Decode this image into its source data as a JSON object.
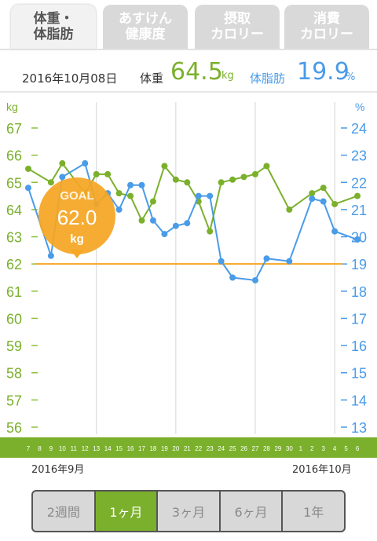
{
  "tabs": [
    {
      "line1": "体重・",
      "line2": "体脂肪"
    },
    {
      "line1": "あすけん",
      "line2": "健康度"
    },
    {
      "line1": "摂取",
      "line2": "カロリー"
    },
    {
      "line1": "消費",
      "line2": "カロリー"
    }
  ],
  "summary": {
    "date": "2016年10月08日",
    "weight_label": "体重",
    "weight_value": "64.5",
    "weight_unit": "kg",
    "fat_label": "体脂肪",
    "fat_value": "19.9",
    "fat_unit": "%"
  },
  "goal": {
    "label": "GOAL",
    "value": "62.0",
    "unit": "kg",
    "weight": 62.0
  },
  "months": {
    "left": "2016年9月",
    "right": "2016年10月"
  },
  "periods": [
    "2週間",
    "1ヶ月",
    "3ヶ月",
    "6ヶ月",
    "1年"
  ],
  "colors": {
    "weight": "#7bb02c",
    "fat": "#4a9be8",
    "goal": "#f5a623",
    "bar": "#7bb02c"
  },
  "chart_data": {
    "type": "line",
    "left_axis": {
      "label": "kg",
      "ylim": [
        56,
        67
      ],
      "ticks": [
        56,
        57,
        58,
        59,
        60,
        61,
        62,
        63,
        64,
        65,
        66,
        67
      ]
    },
    "right_axis": {
      "label": "%",
      "ylim": [
        13,
        24
      ],
      "ticks": [
        13,
        14,
        15,
        16,
        17,
        18,
        19,
        20,
        21,
        22,
        23,
        24
      ]
    },
    "x": [
      "7",
      "8",
      "9",
      "10",
      "11",
      "12",
      "13",
      "14",
      "15",
      "16",
      "17",
      "18",
      "19",
      "20",
      "21",
      "22",
      "23",
      "24",
      "25",
      "26",
      "27",
      "28",
      "29",
      "30",
      "1",
      "2",
      "3",
      "4",
      "5",
      "6"
    ],
    "series": [
      {
        "axis": "left",
        "points": [
          [
            "7",
            65.5
          ],
          [
            "9",
            65.0
          ],
          [
            "10",
            65.7
          ],
          [
            "12",
            64.6
          ],
          [
            "13",
            65.3
          ],
          [
            "14",
            65.3
          ],
          [
            "15",
            64.6
          ],
          [
            "16",
            64.5
          ],
          [
            "17",
            63.6
          ],
          [
            "18",
            64.3
          ],
          [
            "19",
            65.6
          ],
          [
            "20",
            65.1
          ],
          [
            "21",
            65.0
          ],
          [
            "22",
            64.3
          ],
          [
            "23",
            63.2
          ],
          [
            "24",
            65.0
          ],
          [
            "25",
            65.1
          ],
          [
            "26",
            65.2
          ],
          [
            "27",
            65.3
          ],
          [
            "28",
            65.6
          ],
          [
            "30",
            64.0
          ],
          [
            "2",
            64.6
          ],
          [
            "3",
            64.8
          ],
          [
            "4",
            64.2
          ],
          [
            "6",
            64.5
          ]
        ]
      },
      {
        "axis": "right",
        "points": [
          [
            "7",
            21.8
          ],
          [
            "9",
            19.3
          ],
          [
            "10",
            22.2
          ],
          [
            "12",
            22.7
          ],
          [
            "13",
            21.2
          ],
          [
            "14",
            21.6
          ],
          [
            "15",
            21.0
          ],
          [
            "16",
            21.9
          ],
          [
            "17",
            21.9
          ],
          [
            "18",
            20.6
          ],
          [
            "19",
            20.1
          ],
          [
            "20",
            20.4
          ],
          [
            "21",
            20.5
          ],
          [
            "22",
            21.5
          ],
          [
            "23",
            21.5
          ],
          [
            "24",
            19.1
          ],
          [
            "25",
            18.5
          ],
          [
            "27",
            18.4
          ],
          [
            "28",
            19.2
          ],
          [
            "30",
            19.1
          ],
          [
            "2",
            21.4
          ],
          [
            "3",
            21.3
          ],
          [
            "4",
            20.2
          ],
          [
            "6",
            19.9
          ]
        ]
      }
    ],
    "goal_line": 62.0,
    "x_month_labels": [
      "2016年9月",
      "2016年10月"
    ]
  }
}
